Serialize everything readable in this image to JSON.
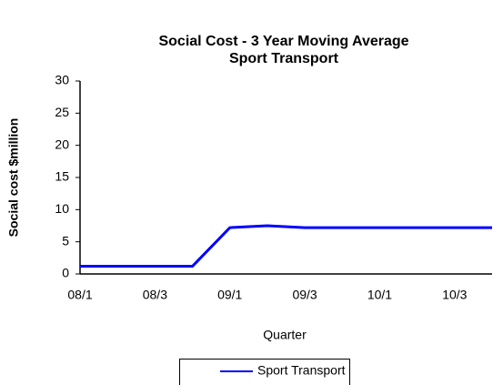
{
  "chart_data": {
    "type": "line",
    "title": [
      "Social Cost - 3 Year Moving Average",
      "Sport Transport"
    ],
    "x_label": "Quarter",
    "y_label": "Social cost  $million",
    "categories": [
      "08/1",
      null,
      "08/3",
      null,
      "09/1",
      null,
      "09/3",
      null,
      "10/1",
      null,
      "10/3",
      null
    ],
    "series": [
      {
        "name": "Sport Transport",
        "color": "#0000ff",
        "values": [
          1.2,
          1.2,
          1.2,
          1.2,
          7.2,
          7.5,
          7.2,
          7.2,
          7.2,
          7.2,
          7.2,
          7.2
        ]
      }
    ],
    "ylim": [
      0,
      30
    ],
    "yticks": [
      0,
      5,
      10,
      15,
      20,
      25,
      30
    ],
    "grid": false,
    "legend": "bottom"
  }
}
